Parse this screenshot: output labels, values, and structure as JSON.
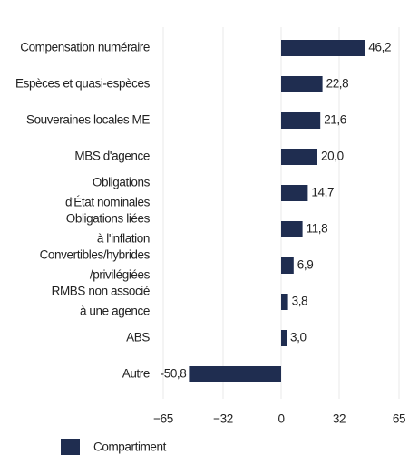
{
  "chart_data": {
    "type": "barh",
    "categories": [
      [
        "Compensation numéraire"
      ],
      [
        "Espèces et quasi-espèces"
      ],
      [
        "Souveraines locales ME"
      ],
      [
        "MBS d'agence"
      ],
      [
        "Obligations",
        "d'État nominales"
      ],
      [
        "Obligations liées",
        "à l'inflation"
      ],
      [
        "Convertibles/hybrides",
        "/privilégiées"
      ],
      [
        "RMBS non associé",
        "à une agence"
      ],
      [
        "ABS"
      ],
      [
        "Autre"
      ]
    ],
    "series": [
      {
        "name": "Compartiment",
        "color": "#1f2d50",
        "values": [
          46.2,
          22.8,
          21.6,
          20.0,
          14.7,
          11.8,
          6.9,
          3.8,
          3.0,
          -50.8
        ],
        "value_labels": [
          "46,2",
          "22,8",
          "21,6",
          "20,0",
          "14,7",
          "11,8",
          "6,9",
          "3,8",
          "3,0",
          "-50,8"
        ]
      }
    ],
    "xlim": [
      -65,
      65
    ],
    "xticks": [
      {
        "value": -65,
        "label": "−65"
      },
      {
        "value": -32,
        "label": "−32"
      },
      0,
      32,
      65
    ],
    "grid": true,
    "legend": "bottom-left"
  }
}
